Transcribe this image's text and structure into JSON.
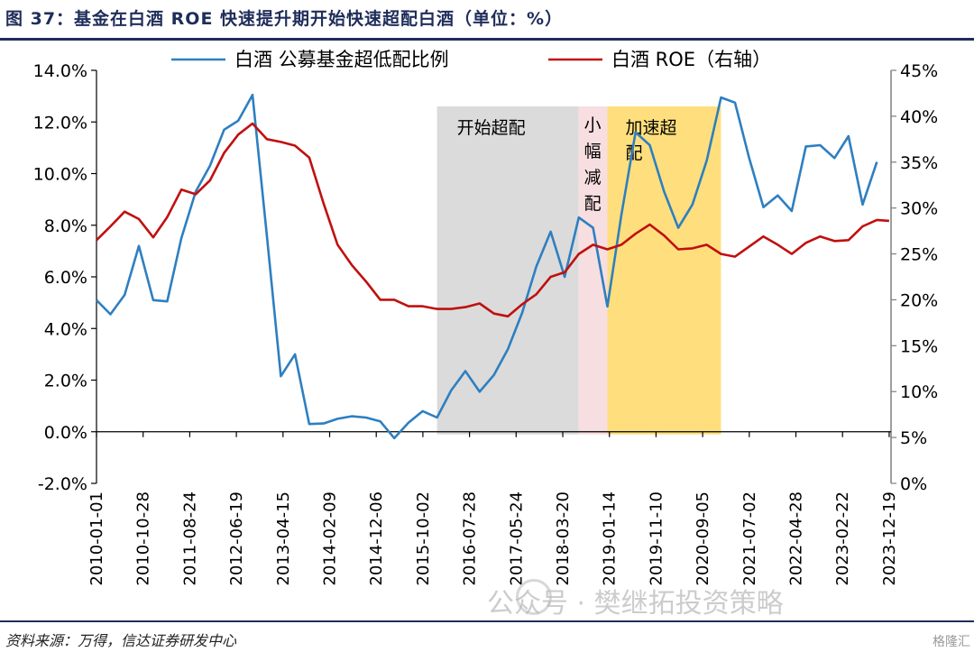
{
  "header": {
    "figure_title": "图 37：基金在白酒 ROE 快速提升期开始快速超配白酒（单位：%）"
  },
  "footer": {
    "source": "资料来源：万得，信达证券研发中心",
    "watermark": "公众号 · 樊继拓投资策略",
    "corner_logo": "格隆汇"
  },
  "colors": {
    "series_overweight": "#2e7fc0",
    "series_roe": "#c0100f",
    "phase_start": "#d9d9d9",
    "phase_reduce": "#f7dcdf",
    "phase_accelerate": "#ffd966",
    "axis": "#000000",
    "right_axis": "#7f7f7f"
  },
  "chart_data": {
    "type": "line",
    "title": "",
    "xlabel": "",
    "ylabel": "",
    "y_left": {
      "min": -2.0,
      "max": 14.0,
      "ticks": [
        "-2.0%",
        "0.0%",
        "2.0%",
        "4.0%",
        "6.0%",
        "8.0%",
        "10.0%",
        "12.0%",
        "14.0%"
      ]
    },
    "y_right": {
      "min": 0,
      "max": 45,
      "ticks": [
        "0%",
        "5%",
        "10%",
        "15%",
        "20%",
        "25%",
        "30%",
        "35%",
        "40%",
        "45%"
      ]
    },
    "x_range": [
      "2010-01-01",
      "2023-12-31"
    ],
    "x_tick_labels": [
      "2010-01-01",
      "2010-10-28",
      "2011-08-24",
      "2012-06-19",
      "2013-04-15",
      "2014-02-09",
      "2014-12-06",
      "2015-10-02",
      "2016-07-28",
      "2017-05-24",
      "2018-03-20",
      "2019-01-14",
      "2019-11-10",
      "2020-09-05",
      "2021-07-02",
      "2022-04-28",
      "2023-02-22",
      "2023-12-19"
    ],
    "legend_position": "top",
    "series": [
      {
        "name": "白酒 公募基金超低配比例",
        "axis": "left",
        "points": [
          [
            "2010-01-01",
            5.1
          ],
          [
            "2010-04-01",
            4.55
          ],
          [
            "2010-07-01",
            5.3
          ],
          [
            "2010-10-01",
            7.2
          ],
          [
            "2011-01-01",
            5.1
          ],
          [
            "2011-04-01",
            5.05
          ],
          [
            "2011-07-01",
            7.5
          ],
          [
            "2011-10-01",
            9.3
          ],
          [
            "2012-01-01",
            10.3
          ],
          [
            "2012-04-01",
            11.7
          ],
          [
            "2012-07-01",
            12.05
          ],
          [
            "2012-10-01",
            13.05
          ],
          [
            "2013-01-01",
            7.6
          ],
          [
            "2013-04-01",
            2.15
          ],
          [
            "2013-07-01",
            3.0
          ],
          [
            "2013-10-01",
            0.3
          ],
          [
            "2014-01-01",
            0.32
          ],
          [
            "2014-04-01",
            0.5
          ],
          [
            "2014-07-01",
            0.6
          ],
          [
            "2014-10-01",
            0.55
          ],
          [
            "2015-01-01",
            0.4
          ],
          [
            "2015-04-01",
            -0.25
          ],
          [
            "2015-07-01",
            0.35
          ],
          [
            "2015-10-01",
            0.8
          ],
          [
            "2016-01-01",
            0.55
          ],
          [
            "2016-04-01",
            1.6
          ],
          [
            "2016-07-01",
            2.35
          ],
          [
            "2016-10-01",
            1.55
          ],
          [
            "2017-01-01",
            2.2
          ],
          [
            "2017-04-01",
            3.2
          ],
          [
            "2017-07-01",
            4.6
          ],
          [
            "2017-10-01",
            6.4
          ],
          [
            "2018-01-01",
            7.75
          ],
          [
            "2018-04-01",
            6.0
          ],
          [
            "2018-07-01",
            8.3
          ],
          [
            "2018-10-01",
            7.9
          ],
          [
            "2019-01-01",
            4.85
          ],
          [
            "2019-04-01",
            8.4
          ],
          [
            "2019-07-01",
            11.6
          ],
          [
            "2019-10-01",
            11.1
          ],
          [
            "2020-01-01",
            9.3
          ],
          [
            "2020-04-01",
            7.9
          ],
          [
            "2020-07-01",
            8.8
          ],
          [
            "2020-10-01",
            10.5
          ],
          [
            "2021-01-01",
            12.95
          ],
          [
            "2021-04-01",
            12.75
          ],
          [
            "2021-07-01",
            10.6
          ],
          [
            "2021-10-01",
            8.7
          ],
          [
            "2022-01-01",
            9.15
          ],
          [
            "2022-04-01",
            8.55
          ],
          [
            "2022-07-01",
            11.05
          ],
          [
            "2022-10-01",
            11.1
          ],
          [
            "2023-01-01",
            10.6
          ],
          [
            "2023-04-01",
            11.45
          ],
          [
            "2023-07-01",
            8.8
          ],
          [
            "2023-10-01",
            10.45
          ]
        ]
      },
      {
        "name": "白酒 ROE（右轴）",
        "axis": "right",
        "points": [
          [
            "2010-01-01",
            26.5
          ],
          [
            "2010-04-01",
            28.0
          ],
          [
            "2010-07-01",
            29.6
          ],
          [
            "2010-10-01",
            28.8
          ],
          [
            "2011-01-01",
            26.8
          ],
          [
            "2011-04-01",
            29.0
          ],
          [
            "2011-07-01",
            32.0
          ],
          [
            "2011-10-01",
            31.5
          ],
          [
            "2012-01-01",
            33.0
          ],
          [
            "2012-04-01",
            36.0
          ],
          [
            "2012-07-01",
            38.0
          ],
          [
            "2012-10-01",
            39.2
          ],
          [
            "2013-01-01",
            37.5
          ],
          [
            "2013-04-01",
            37.2
          ],
          [
            "2013-07-01",
            36.8
          ],
          [
            "2013-10-01",
            35.5
          ],
          [
            "2014-01-01",
            30.5
          ],
          [
            "2014-04-01",
            26.0
          ],
          [
            "2014-07-01",
            23.8
          ],
          [
            "2014-10-01",
            22.0
          ],
          [
            "2015-01-01",
            20.0
          ],
          [
            "2015-04-01",
            20.0
          ],
          [
            "2015-07-01",
            19.3
          ],
          [
            "2015-10-01",
            19.3
          ],
          [
            "2016-01-01",
            19.0
          ],
          [
            "2016-04-01",
            19.0
          ],
          [
            "2016-07-01",
            19.2
          ],
          [
            "2016-10-01",
            19.6
          ],
          [
            "2017-01-01",
            18.5
          ],
          [
            "2017-04-01",
            18.2
          ],
          [
            "2017-07-01",
            19.5
          ],
          [
            "2017-10-01",
            20.6
          ],
          [
            "2018-01-01",
            22.5
          ],
          [
            "2018-04-01",
            23.0
          ],
          [
            "2018-07-01",
            25.0
          ],
          [
            "2018-10-01",
            26.0
          ],
          [
            "2019-01-01",
            25.5
          ],
          [
            "2019-04-01",
            26.0
          ],
          [
            "2019-07-01",
            27.2
          ],
          [
            "2019-10-01",
            28.2
          ],
          [
            "2020-01-01",
            27.0
          ],
          [
            "2020-04-01",
            25.5
          ],
          [
            "2020-07-01",
            25.6
          ],
          [
            "2020-10-01",
            26.0
          ],
          [
            "2021-01-01",
            25.0
          ],
          [
            "2021-04-01",
            24.7
          ],
          [
            "2021-07-01",
            25.8
          ],
          [
            "2021-10-01",
            26.9
          ],
          [
            "2022-01-01",
            26.0
          ],
          [
            "2022-04-01",
            25.0
          ],
          [
            "2022-07-01",
            26.2
          ],
          [
            "2022-10-01",
            26.9
          ],
          [
            "2023-01-01",
            26.4
          ],
          [
            "2023-04-01",
            26.5
          ],
          [
            "2023-07-01",
            28.0
          ],
          [
            "2023-10-01",
            28.7
          ],
          [
            "2023-12-19",
            28.6
          ]
        ]
      }
    ],
    "phases": [
      {
        "label": "开始超配",
        "start": "2016-01-01",
        "end": "2018-07-01",
        "color_key": "phase_start"
      },
      {
        "label": "小幅减配",
        "start": "2018-07-01",
        "end": "2019-01-01",
        "color_key": "phase_reduce"
      },
      {
        "label": "加速超配",
        "start": "2019-01-01",
        "end": "2021-01-01",
        "color_key": "phase_accelerate"
      }
    ]
  }
}
